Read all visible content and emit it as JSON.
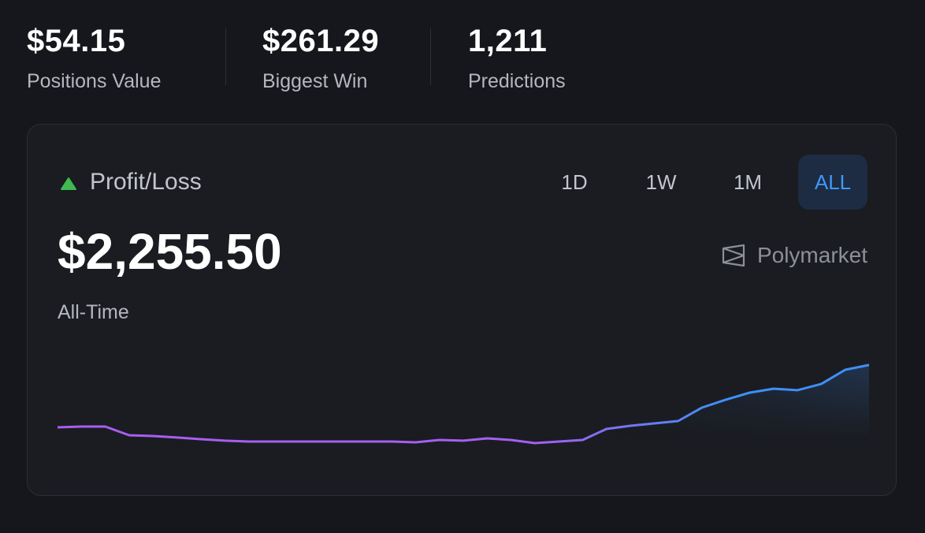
{
  "stats": [
    {
      "value": "$54.15",
      "label": "Positions Value"
    },
    {
      "value": "$261.29",
      "label": "Biggest Win"
    },
    {
      "value": "1,211",
      "label": "Predictions"
    }
  ],
  "card": {
    "title": "Profit/Loss",
    "ranges": [
      "1D",
      "1W",
      "1M",
      "ALL"
    ],
    "active_range": "ALL",
    "value": "$2,255.50",
    "period": "All-Time",
    "brand": "Polymarket"
  },
  "chart_data": {
    "type": "line",
    "colors": [
      "#a65ef2",
      "#3f8ff6"
    ],
    "ylim": [
      0,
      100
    ],
    "values": [
      36.9,
      37.5,
      37.5,
      30.6,
      30,
      28.8,
      27.5,
      26.3,
      25.6,
      25.6,
      25.6,
      25.6,
      25.6,
      25.6,
      25.6,
      25,
      26.9,
      26.3,
      28.1,
      26.9,
      24.4,
      25.6,
      26.9,
      35.6,
      38.1,
      40,
      41.9,
      52.5,
      58.8,
      64.4,
      67.5,
      66.3,
      71.3,
      82.5,
      86.3
    ]
  }
}
